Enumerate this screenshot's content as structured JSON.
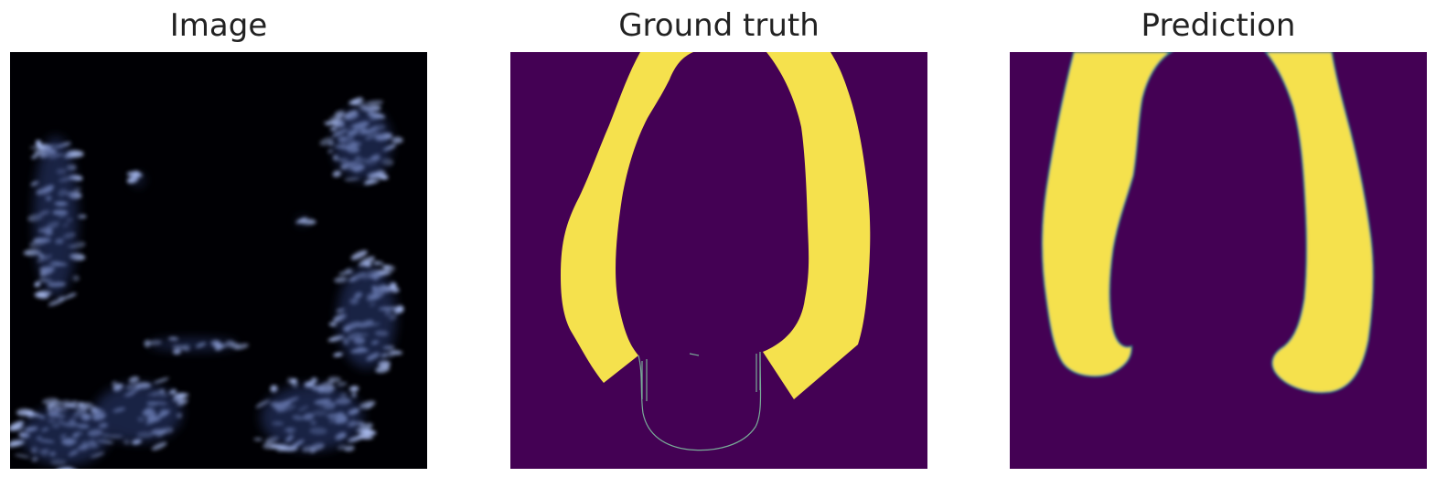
{
  "panels": [
    {
      "title": "Image"
    },
    {
      "title": "Ground truth"
    },
    {
      "title": "Prediction"
    }
  ],
  "colors": {
    "background_segmentation": "#440154",
    "foreground_segmentation": "#f5e14d",
    "ultrasound_background": "#000004",
    "ultrasound_speckle": "#b7c9ff"
  }
}
